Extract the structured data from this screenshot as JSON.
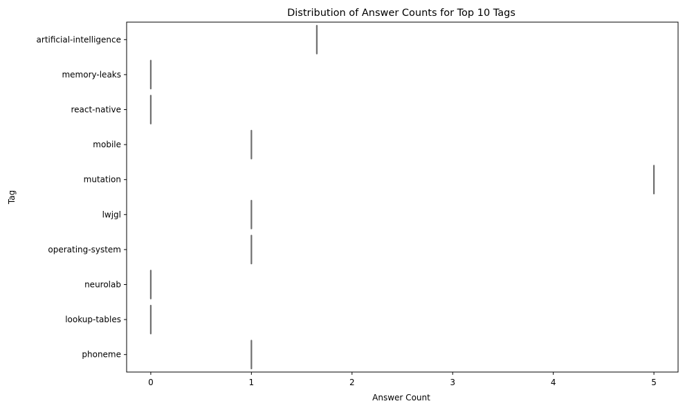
{
  "chart_data": {
    "type": "violin",
    "orientation": "horizontal",
    "title": "Distribution of Answer Counts for Top 10 Tags",
    "xlabel": "Answer Count",
    "ylabel": "Tag",
    "xlim": [
      -0.24,
      5.24
    ],
    "xticks": [
      0,
      1,
      2,
      3,
      4,
      5
    ],
    "xtick_labels": [
      "0",
      "1",
      "2",
      "3",
      "4",
      "5"
    ],
    "categories": [
      "artificial-intelligence",
      "memory-leaks",
      "react-native",
      "mobile",
      "mutation",
      "lwjgl",
      "operating-system",
      "neurolab",
      "lookup-tables",
      "phoneme"
    ],
    "values": [
      1.65,
      0,
      0,
      1,
      5,
      1,
      1,
      0,
      0,
      1
    ],
    "colors": {
      "mark": "#6e6e6e",
      "axis": "#000000"
    },
    "grid": false,
    "legend": "none"
  }
}
